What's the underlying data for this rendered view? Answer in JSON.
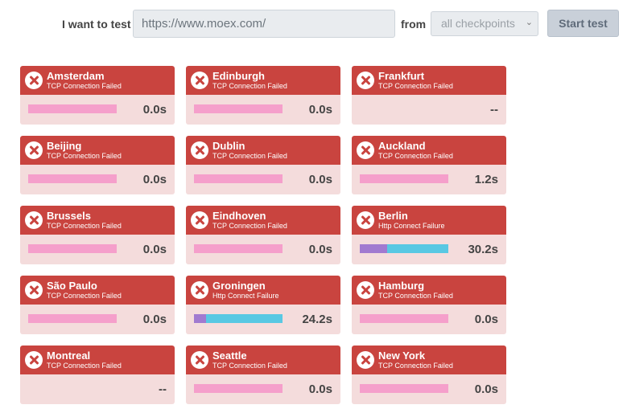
{
  "form": {
    "want_label": "I want to test",
    "url_value": "https://www.moex.com/",
    "from_label": "from",
    "checkpoints_selected": "all checkpoints",
    "start_button": "Start test"
  },
  "colors": {
    "card_header": "#c9443f",
    "card_body": "#f4dcdc",
    "bar_pink": "#f59fcb",
    "bar_purple": "#a17ad0",
    "bar_cyan": "#59c8e3"
  },
  "checkpoints": [
    {
      "city": "Amsterdam",
      "status": "TCP Connection Failed",
      "time": "0.0s",
      "segments": [
        {
          "color": "#f59fcb",
          "frac": 1.0
        }
      ]
    },
    {
      "city": "Edinburgh",
      "status": "TCP Connection Failed",
      "time": "0.0s",
      "segments": [
        {
          "color": "#f59fcb",
          "frac": 1.0
        }
      ]
    },
    {
      "city": "Frankfurt",
      "status": "TCP Connection Failed",
      "time": "--",
      "segments": []
    },
    {
      "city": "Beijing",
      "status": "TCP Connection Failed",
      "time": "0.0s",
      "segments": [
        {
          "color": "#f59fcb",
          "frac": 1.0
        }
      ]
    },
    {
      "city": "Dublin",
      "status": "TCP Connection Failed",
      "time": "0.0s",
      "segments": [
        {
          "color": "#f59fcb",
          "frac": 1.0
        }
      ]
    },
    {
      "city": "Auckland",
      "status": "TCP Connection Failed",
      "time": "1.2s",
      "segments": [
        {
          "color": "#f59fcb",
          "frac": 1.0
        }
      ]
    },
    {
      "city": "Brussels",
      "status": "TCP Connection Failed",
      "time": "0.0s",
      "segments": [
        {
          "color": "#f59fcb",
          "frac": 1.0
        }
      ]
    },
    {
      "city": "Eindhoven",
      "status": "TCP Connection Failed",
      "time": "0.0s",
      "segments": [
        {
          "color": "#f59fcb",
          "frac": 1.0
        }
      ]
    },
    {
      "city": "Berlin",
      "status": "Http Connect Failure",
      "time": "30.2s",
      "segments": [
        {
          "color": "#a17ad0",
          "frac": 0.31
        },
        {
          "color": "#59c8e3",
          "frac": 0.69
        }
      ]
    },
    {
      "city": "São Paulo",
      "status": "TCP Connection Failed",
      "time": "0.0s",
      "segments": [
        {
          "color": "#f59fcb",
          "frac": 1.0
        }
      ]
    },
    {
      "city": "Groningen",
      "status": "Http Connect Failure",
      "time": "24.2s",
      "segments": [
        {
          "color": "#a17ad0",
          "frac": 0.14
        },
        {
          "color": "#59c8e3",
          "frac": 0.86
        }
      ]
    },
    {
      "city": "Hamburg",
      "status": "TCP Connection Failed",
      "time": "0.0s",
      "segments": [
        {
          "color": "#f59fcb",
          "frac": 1.0
        }
      ]
    },
    {
      "city": "Montreal",
      "status": "TCP Connection Failed",
      "time": "--",
      "segments": []
    },
    {
      "city": "Seattle",
      "status": "TCP Connection Failed",
      "time": "0.0s",
      "segments": [
        {
          "color": "#f59fcb",
          "frac": 1.0
        }
      ]
    },
    {
      "city": "New York",
      "status": "TCP Connection Failed",
      "time": "0.0s",
      "segments": [
        {
          "color": "#f59fcb",
          "frac": 1.0
        }
      ]
    }
  ]
}
